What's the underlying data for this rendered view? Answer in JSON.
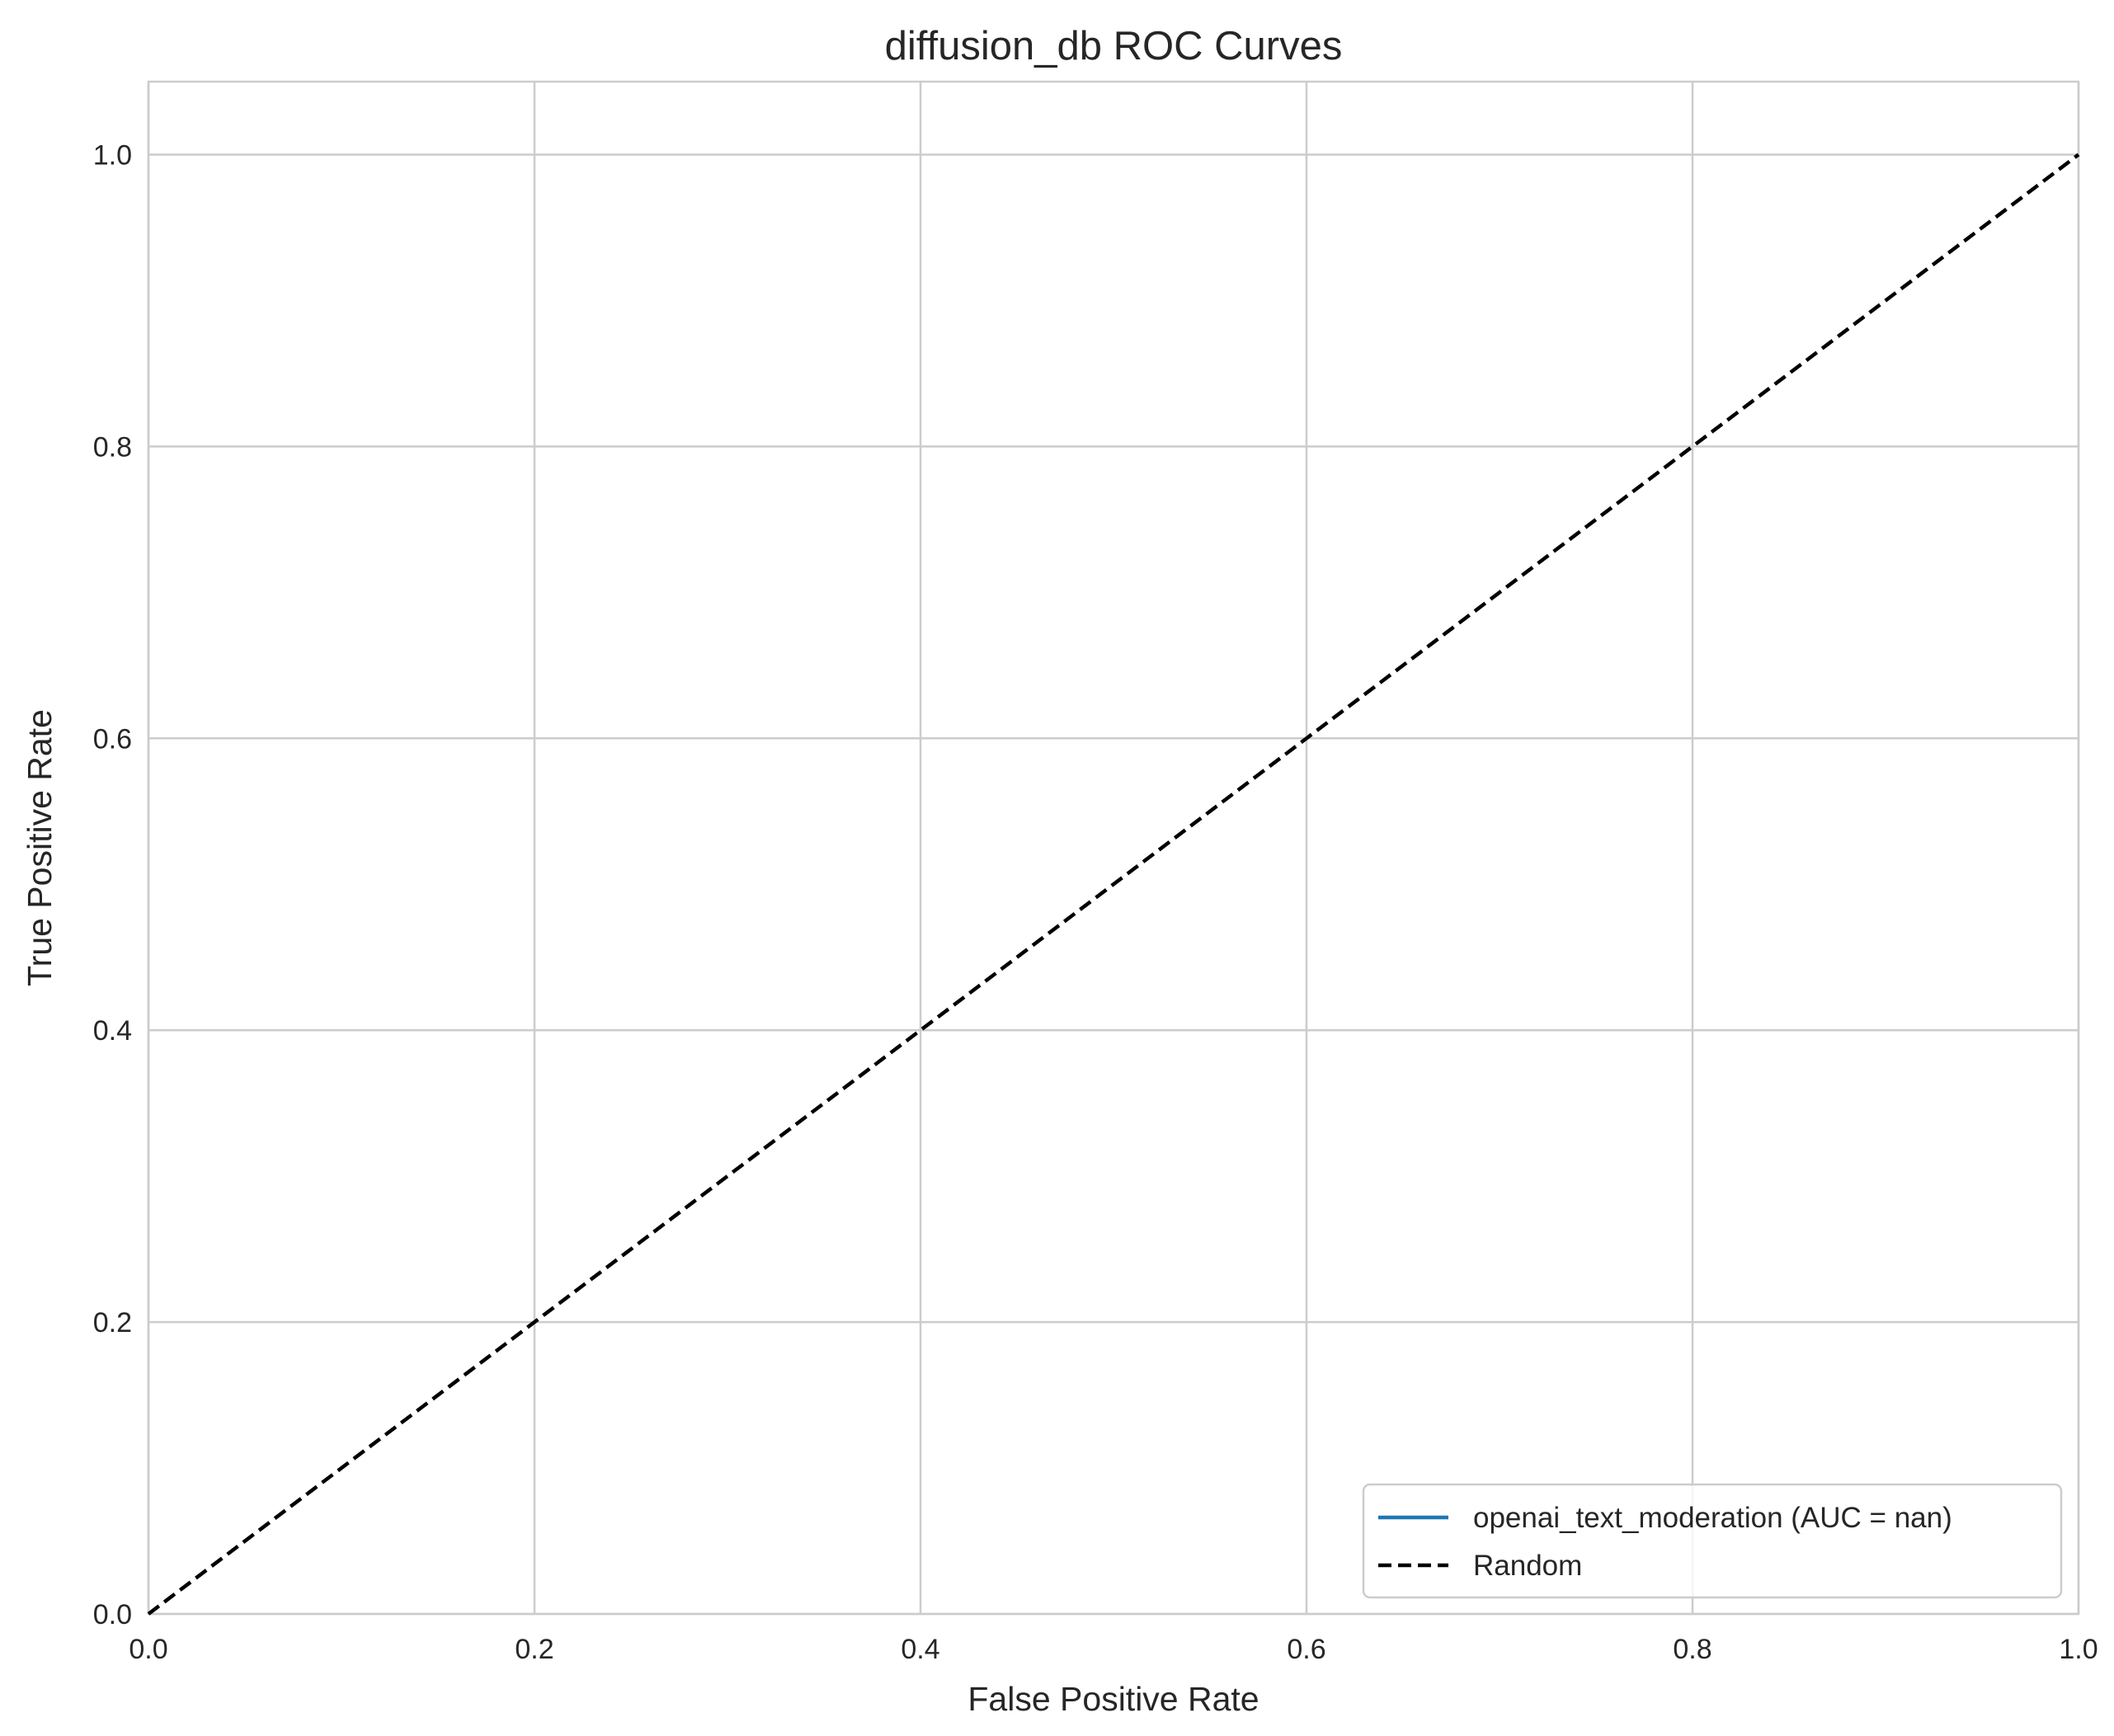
{
  "chart_data": {
    "type": "line",
    "title": "diffusion_db ROC Curves",
    "xlabel": "False Positive Rate",
    "ylabel": "True Positive Rate",
    "xlim": [
      0.0,
      1.0
    ],
    "ylim": [
      0.0,
      1.05
    ],
    "xticks": [
      0.0,
      0.2,
      0.4,
      0.6,
      0.8,
      1.0
    ],
    "yticks": [
      0.0,
      0.2,
      0.4,
      0.6,
      0.8,
      1.0
    ],
    "xtick_labels": [
      "0.0",
      "0.2",
      "0.4",
      "0.6",
      "0.8",
      "1.0"
    ],
    "ytick_labels": [
      "0.0",
      "0.2",
      "0.4",
      "0.6",
      "0.8",
      "1.0"
    ],
    "grid": true,
    "legend_position": "lower-right",
    "series": [
      {
        "name": "openai_text_moderation (AUC = nan)",
        "color": "#1f77b4",
        "style": "solid",
        "x": [],
        "y": []
      },
      {
        "name": "Random",
        "color": "#000000",
        "style": "dashed",
        "x": [
          0,
          1
        ],
        "y": [
          0,
          1
        ]
      }
    ]
  }
}
